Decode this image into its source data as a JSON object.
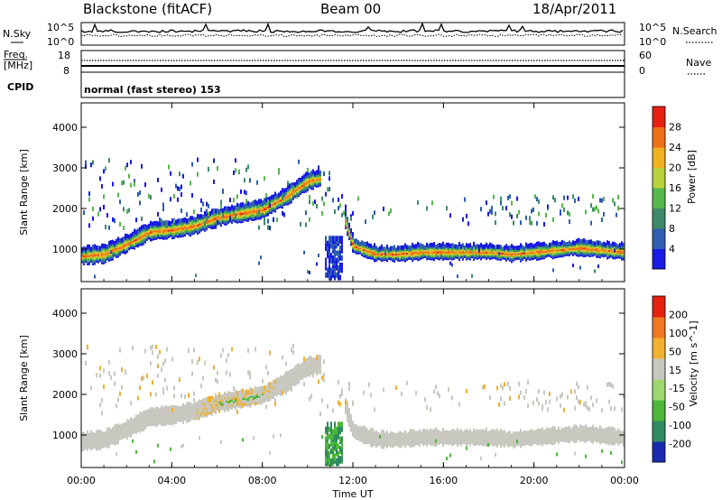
{
  "header": {
    "station": "Blackstone (fitACF)",
    "beam": "Beam 00",
    "date": "18/Apr/2011"
  },
  "noise_panel": {
    "left_label": "N.Sky",
    "right_label": "N.Search",
    "left_ticks": [
      "10^5",
      "10^0"
    ],
    "right_ticks": [
      "10^5",
      "10^0"
    ]
  },
  "freq_panel": {
    "left_label_line1": "Freq.",
    "left_label_line2": "[MHz]",
    "right_label": "Nave",
    "left_ticks": [
      "18",
      "8"
    ],
    "right_ticks": [
      "60",
      "0"
    ]
  },
  "cpid_panel": {
    "label": "CPID",
    "text": "normal (fast stereo) 153"
  },
  "x_axis": {
    "label": "Time UT",
    "ticks": [
      "00:00",
      "04:00",
      "08:00",
      "12:00",
      "16:00",
      "20:00",
      "00:00"
    ]
  },
  "chart_data": [
    {
      "type": "heatmap",
      "panel": "power",
      "ylabel": "Slant Range [km]",
      "yticks": [
        1000,
        2000,
        3000,
        4000
      ],
      "ylim": [
        200,
        4600
      ],
      "xlim_hours": [
        0,
        24
      ],
      "colorbar_label": "Power [dB]",
      "colorbar_ticks": [
        "28",
        "24",
        "20",
        "16",
        "12",
        "8",
        "4"
      ],
      "colors": [
        "#1a1ae6",
        "#2e5fb0",
        "#3f8a6a",
        "#55b84a",
        "#b8d23c",
        "#f0b020",
        "#f07018",
        "#e82010"
      ],
      "echo_band": {
        "hours": [
          0,
          1,
          2,
          3,
          4,
          5,
          6,
          7,
          8,
          9,
          10,
          11,
          12,
          13,
          14,
          15,
          16,
          17,
          18,
          19,
          20,
          21,
          22,
          23,
          24
        ],
        "center_km": [
          850,
          900,
          1150,
          1450,
          1500,
          1600,
          1800,
          1900,
          2000,
          2300,
          2700,
          2800,
          1100,
          900,
          900,
          950,
          950,
          950,
          950,
          900,
          950,
          1000,
          1050,
          1000,
          950
        ]
      }
    },
    {
      "type": "heatmap",
      "panel": "velocity",
      "ylabel": "Slant Range [km]",
      "yticks": [
        1000,
        2000,
        3000,
        4000
      ],
      "ylim": [
        200,
        4600
      ],
      "xlim_hours": [
        0,
        24
      ],
      "colorbar_label": "Velocity [m s^-1]",
      "colorbar_ticks": [
        "200",
        "100",
        "50",
        "15",
        "-15",
        "-50",
        "-100",
        "-200"
      ],
      "colors": [
        "#1a2ab0",
        "#2f8a60",
        "#4bb838",
        "#a0d870",
        "#c8c8c0",
        "#f0b030",
        "#f07820",
        "#e82010"
      ]
    }
  ]
}
